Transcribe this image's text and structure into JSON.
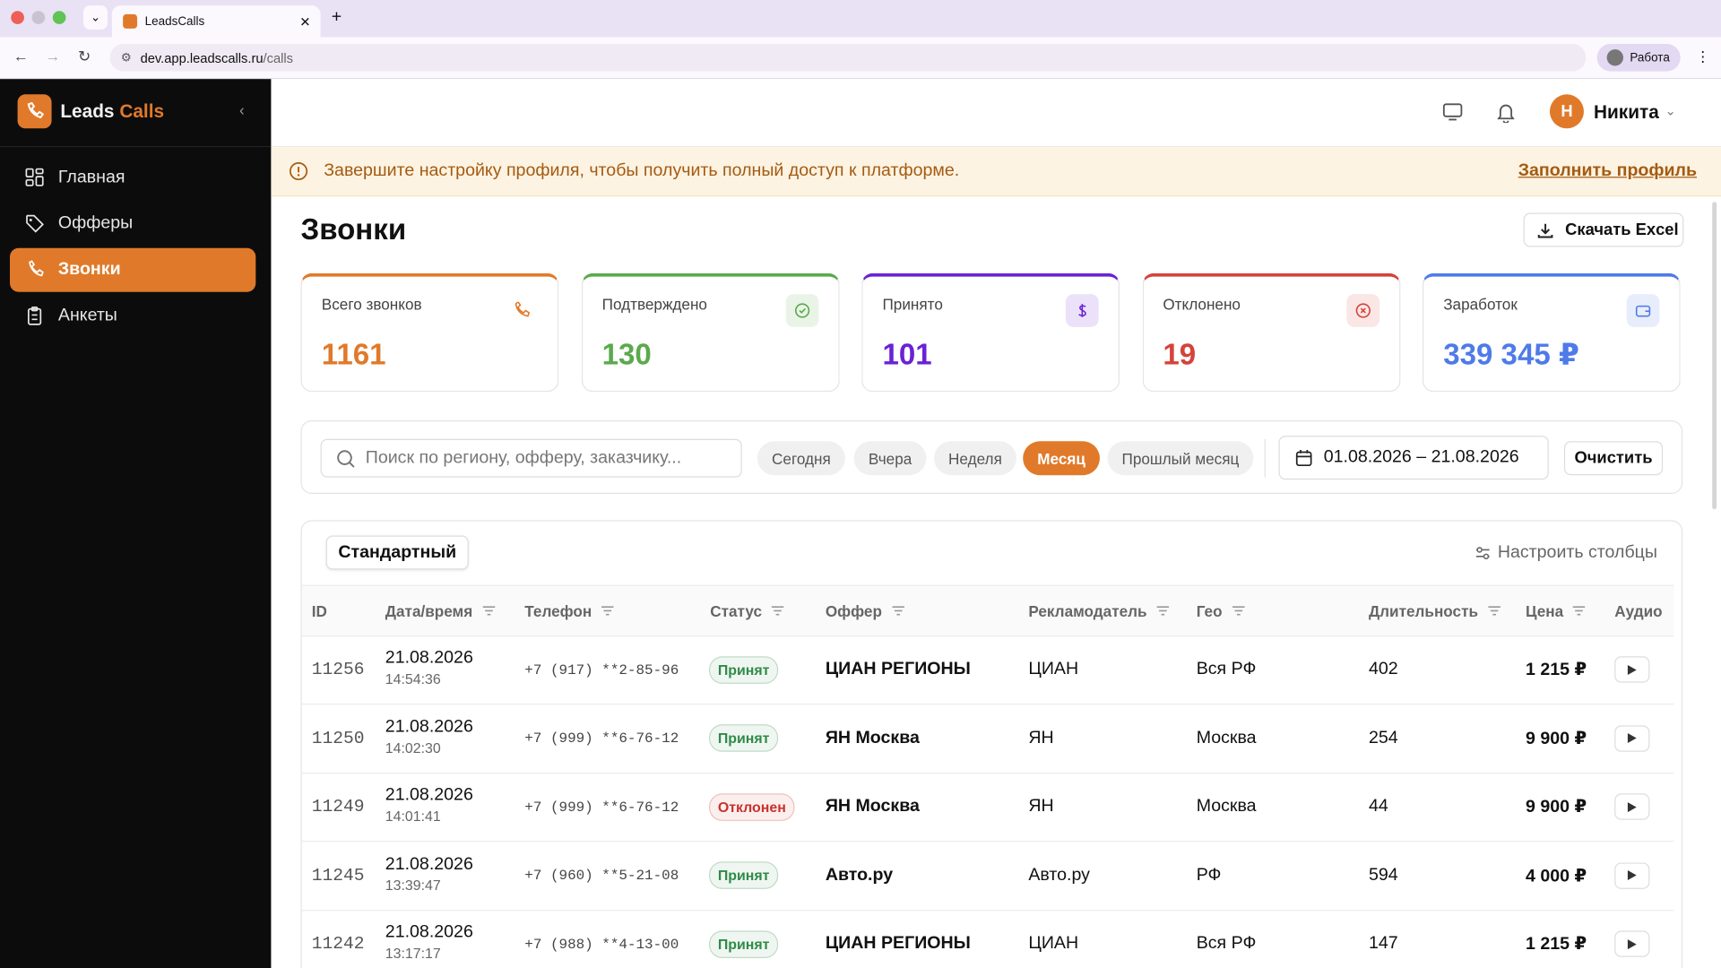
{
  "browser": {
    "tab_title": "LeadsCalls",
    "url_host": "dev.app.leadscalls.ru",
    "url_path": "/calls",
    "profile": "Работа"
  },
  "sidebar": {
    "brand_first": "Leads",
    "brand_second": "Calls",
    "nav": [
      {
        "label": "Главная",
        "active": false
      },
      {
        "label": "Офферы",
        "active": false
      },
      {
        "label": "Звонки",
        "active": true
      },
      {
        "label": "Анкеты",
        "active": false
      }
    ]
  },
  "header": {
    "avatar_initial": "Н",
    "user_name": "Никита"
  },
  "banner": {
    "text": "Завершите настройку профиля, чтобы получить полный доступ к платформе.",
    "link": "Заполнить профиль"
  },
  "page": {
    "title": "Звонки",
    "export_button": "Скачать Excel"
  },
  "stats": [
    {
      "label": "Всего звонков",
      "value": "1161",
      "color": "#e07a2a"
    },
    {
      "label": "Подтверждено",
      "value": "130",
      "color": "#5aaa4c"
    },
    {
      "label": "Принято",
      "value": "101",
      "color": "#6a22d6"
    },
    {
      "label": "Отклонено",
      "value": "19",
      "color": "#d4433a"
    },
    {
      "label": "Заработок",
      "value": "339 345 ₽",
      "color": "#4f7be8"
    }
  ],
  "filters": {
    "search_placeholder": "Поиск по региону, офферу, заказчику...",
    "periods": [
      {
        "label": "Сегодня",
        "active": false
      },
      {
        "label": "Вчера",
        "active": false
      },
      {
        "label": "Неделя",
        "active": false
      },
      {
        "label": "Месяц",
        "active": true
      },
      {
        "label": "Прошлый месяц",
        "active": false
      }
    ],
    "date_range": "01.08.2026 – 21.08.2026",
    "clear": "Очистить"
  },
  "table": {
    "view": "Стандартный",
    "configure": "Настроить столбцы",
    "columns": [
      {
        "label": "ID",
        "filter": false
      },
      {
        "label": "Дата/время",
        "filter": true
      },
      {
        "label": "Телефон",
        "filter": true
      },
      {
        "label": "Статус",
        "filter": true
      },
      {
        "label": "Оффер",
        "filter": true
      },
      {
        "label": "Рекламодатель",
        "filter": true
      },
      {
        "label": "Гео",
        "filter": true
      },
      {
        "label": "Длительность",
        "filter": true
      },
      {
        "label": "Цена",
        "filter": true
      },
      {
        "label": "Аудио",
        "filter": false
      }
    ],
    "rows": [
      {
        "id": "11256",
        "date": "21.08.2026",
        "time": "14:54:36",
        "phone": "+7 (917) **2-85-96",
        "status": "Принят",
        "status_color": "#2e8b47",
        "offer": "ЦИАН РЕГИОНЫ",
        "advertiser": "ЦИАН",
        "geo": "Вся РФ",
        "duration": "402",
        "price": "1 215 ₽"
      },
      {
        "id": "11250",
        "date": "21.08.2026",
        "time": "14:02:30",
        "phone": "+7 (999) **6-76-12",
        "status": "Принят",
        "status_color": "#2e8b47",
        "offer": "ЯН Москва",
        "advertiser": "ЯН",
        "geo": "Москва",
        "duration": "254",
        "price": "9 900 ₽"
      },
      {
        "id": "11249",
        "date": "21.08.2026",
        "time": "14:01:41",
        "phone": "+7 (999) **6-76-12",
        "status": "Отклонен",
        "status_color": "#c8322c",
        "offer": "ЯН Москва",
        "advertiser": "ЯН",
        "geo": "Москва",
        "duration": "44",
        "price": "9 900 ₽"
      },
      {
        "id": "11245",
        "date": "21.08.2026",
        "time": "13:39:47",
        "phone": "+7 (960) **5-21-08",
        "status": "Принят",
        "status_color": "#2e8b47",
        "offer": "Авто.ру",
        "advertiser": "Авто.ру",
        "geo": "РФ",
        "duration": "594",
        "price": "4 000 ₽"
      },
      {
        "id": "11242",
        "date": "21.08.2026",
        "time": "13:17:17",
        "phone": "+7 (988) **4-13-00",
        "status": "Принят",
        "status_color": "#2e8b47",
        "offer": "ЦИАН РЕГИОНЫ",
        "advertiser": "ЦИАН",
        "geo": "Вся РФ",
        "duration": "147",
        "price": "1 215 ₽"
      }
    ]
  }
}
